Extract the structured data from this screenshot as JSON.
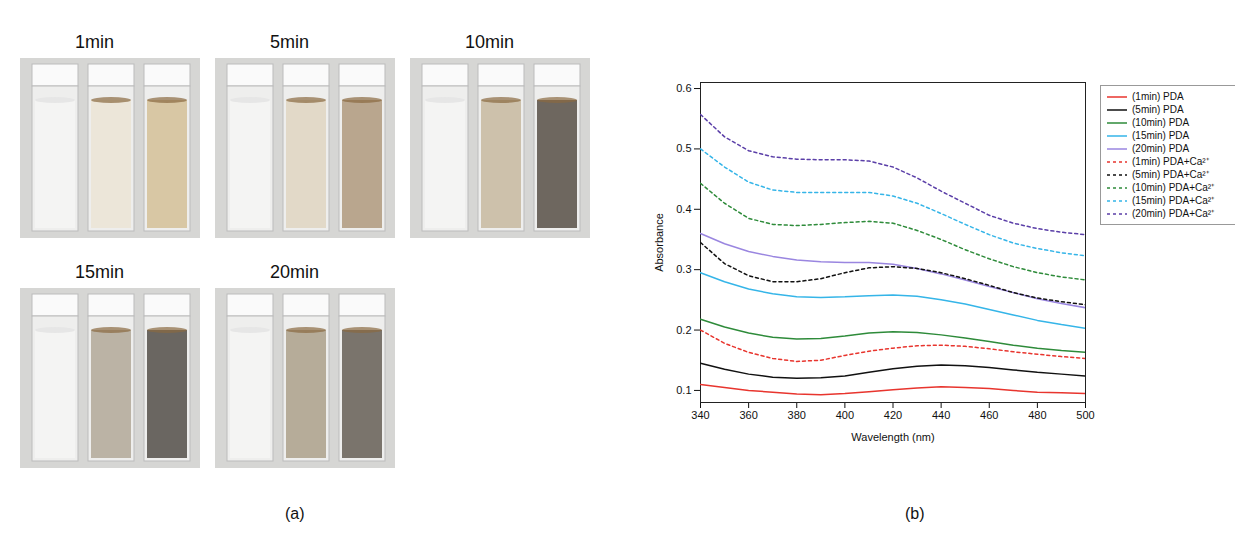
{
  "panel_labels": [
    "(a)",
    "(b)"
  ],
  "photo_panel": {
    "labels": [
      "1min",
      "5min",
      "10min",
      "15min",
      "20min"
    ]
  },
  "chart_data": {
    "type": "line",
    "x_label": "Wavelength (nm)",
    "y_label": "Absorbance",
    "x": [
      340,
      350,
      360,
      370,
      380,
      390,
      400,
      410,
      420,
      430,
      440,
      450,
      460,
      470,
      480,
      490,
      500
    ],
    "xlim": [
      340,
      500
    ],
    "xticks": [
      340,
      360,
      380,
      400,
      420,
      440,
      460,
      480,
      500
    ],
    "ylim": [
      0.08,
      0.61
    ],
    "yticks": [
      0.1,
      0.2,
      0.3,
      0.4,
      0.5,
      0.6
    ],
    "legend": "right",
    "series": [
      {
        "name": "(1min) PDA",
        "color": "#e8352e",
        "line_style": "solid",
        "values": [
          0.11,
          0.105,
          0.1,
          0.097,
          0.094,
          0.093,
          0.095,
          0.098,
          0.101,
          0.104,
          0.106,
          0.105,
          0.103,
          0.1,
          0.097,
          0.096,
          0.095
        ]
      },
      {
        "name": "(5min) PDA",
        "color": "#111111",
        "line_style": "solid",
        "values": [
          0.145,
          0.135,
          0.127,
          0.122,
          0.12,
          0.121,
          0.124,
          0.13,
          0.136,
          0.14,
          0.142,
          0.141,
          0.138,
          0.134,
          0.13,
          0.127,
          0.124
        ]
      },
      {
        "name": "(10min) PDA",
        "color": "#2e8b3a",
        "line_style": "solid",
        "values": [
          0.218,
          0.205,
          0.195,
          0.188,
          0.185,
          0.186,
          0.19,
          0.195,
          0.197,
          0.196,
          0.192,
          0.187,
          0.181,
          0.175,
          0.17,
          0.166,
          0.163
        ]
      },
      {
        "name": "(15min) PDA",
        "color": "#35b5e8",
        "line_style": "solid",
        "values": [
          0.295,
          0.28,
          0.268,
          0.26,
          0.255,
          0.254,
          0.255,
          0.257,
          0.258,
          0.256,
          0.25,
          0.243,
          0.234,
          0.225,
          0.216,
          0.209,
          0.203
        ]
      },
      {
        "name": "(20min) PDA",
        "color": "#9a86e0",
        "line_style": "solid",
        "values": [
          0.36,
          0.343,
          0.33,
          0.322,
          0.316,
          0.313,
          0.312,
          0.312,
          0.309,
          0.302,
          0.293,
          0.283,
          0.272,
          0.262,
          0.252,
          0.244,
          0.237
        ]
      },
      {
        "name": "(1min) PDA+Ca²⁺",
        "color": "#e8352e",
        "line_style": "dashed",
        "values": [
          0.2,
          0.178,
          0.163,
          0.153,
          0.148,
          0.15,
          0.158,
          0.165,
          0.17,
          0.174,
          0.175,
          0.173,
          0.169,
          0.164,
          0.16,
          0.156,
          0.153
        ]
      },
      {
        "name": "(5min) PDA+Ca²⁺",
        "color": "#111111",
        "line_style": "dashed",
        "values": [
          0.345,
          0.31,
          0.29,
          0.28,
          0.28,
          0.285,
          0.295,
          0.303,
          0.305,
          0.302,
          0.295,
          0.285,
          0.274,
          0.262,
          0.253,
          0.247,
          0.242
        ]
      },
      {
        "name": "(10min) PDA+Ca²⁺",
        "color": "#2e8b3a",
        "line_style": "dashed",
        "values": [
          0.443,
          0.41,
          0.385,
          0.375,
          0.373,
          0.375,
          0.378,
          0.38,
          0.377,
          0.365,
          0.35,
          0.333,
          0.318,
          0.305,
          0.295,
          0.288,
          0.283
        ]
      },
      {
        "name": "(15min) PDA+Ca²⁺",
        "color": "#35b5e8",
        "line_style": "dashed",
        "values": [
          0.5,
          0.47,
          0.445,
          0.432,
          0.428,
          0.428,
          0.428,
          0.428,
          0.422,
          0.41,
          0.393,
          0.375,
          0.358,
          0.344,
          0.335,
          0.328,
          0.323
        ]
      },
      {
        "name": "(20min) PDA+Ca²⁺",
        "color": "#5b3fa8",
        "line_style": "dashed",
        "values": [
          0.557,
          0.52,
          0.497,
          0.487,
          0.483,
          0.482,
          0.482,
          0.48,
          0.47,
          0.452,
          0.43,
          0.41,
          0.39,
          0.377,
          0.368,
          0.362,
          0.358
        ]
      }
    ]
  }
}
